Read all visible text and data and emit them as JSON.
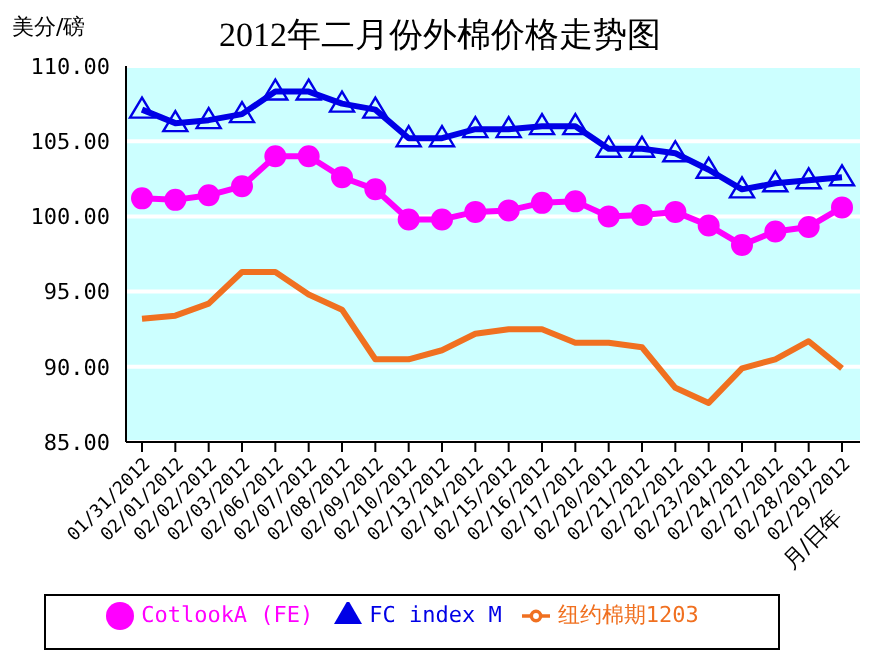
{
  "chart_data": {
    "type": "line",
    "title": "2012年二月份外棉价格走势图",
    "ylabel": "美分/磅",
    "xlabel": "月/日年",
    "categories": [
      "01/31/2012",
      "02/01/2012",
      "02/02/2012",
      "02/03/2012",
      "02/06/2012",
      "02/07/2012",
      "02/08/2012",
      "02/09/2012",
      "02/10/2012",
      "02/13/2012",
      "02/14/2012",
      "02/15/2012",
      "02/16/2012",
      "02/17/2012",
      "02/20/2012",
      "02/21/2012",
      "02/22/2012",
      "02/23/2012",
      "02/24/2012",
      "02/27/2012",
      "02/28/2012",
      "02/29/2012"
    ],
    "series": [
      {
        "name": "FC index M",
        "color": "#0000e6",
        "marker": "triangle",
        "values": [
          107.1,
          106.2,
          106.4,
          106.8,
          108.3,
          108.3,
          107.5,
          107.1,
          105.2,
          105.2,
          105.8,
          105.8,
          106.0,
          106.0,
          104.5,
          104.5,
          104.2,
          103.1,
          101.8,
          102.2,
          102.4,
          102.6
        ]
      },
      {
        "name": "CotlookA (FE)",
        "color": "#ff00ff",
        "marker": "circle",
        "values": [
          101.2,
          101.1,
          101.4,
          102.0,
          104.0,
          104.0,
          102.6,
          101.8,
          99.8,
          99.8,
          100.3,
          100.4,
          100.9,
          101.0,
          100.0,
          100.1,
          100.3,
          99.4,
          98.1,
          99.0,
          99.3,
          100.6
        ]
      },
      {
        "name": "纽约棉期1203",
        "color": "#f07020",
        "marker": "none",
        "values": [
          93.2,
          93.4,
          94.2,
          96.3,
          96.3,
          94.8,
          93.8,
          90.5,
          90.5,
          91.1,
          92.2,
          92.5,
          92.5,
          91.6,
          91.6,
          91.3,
          88.6,
          87.6,
          89.9,
          90.5,
          91.7,
          89.9
        ]
      }
    ],
    "ylim": [
      85,
      110
    ],
    "yticks": [
      {
        "value": 85,
        "label": "85.00"
      },
      {
        "value": 90,
        "label": "90.00"
      },
      {
        "value": 95,
        "label": "95.00"
      },
      {
        "value": 100,
        "label": "100.00"
      },
      {
        "value": 105,
        "label": "105.00"
      },
      {
        "value": 110,
        "label": "110.00"
      }
    ],
    "grid": "y",
    "legend": "bottom",
    "line_style": "solid"
  }
}
